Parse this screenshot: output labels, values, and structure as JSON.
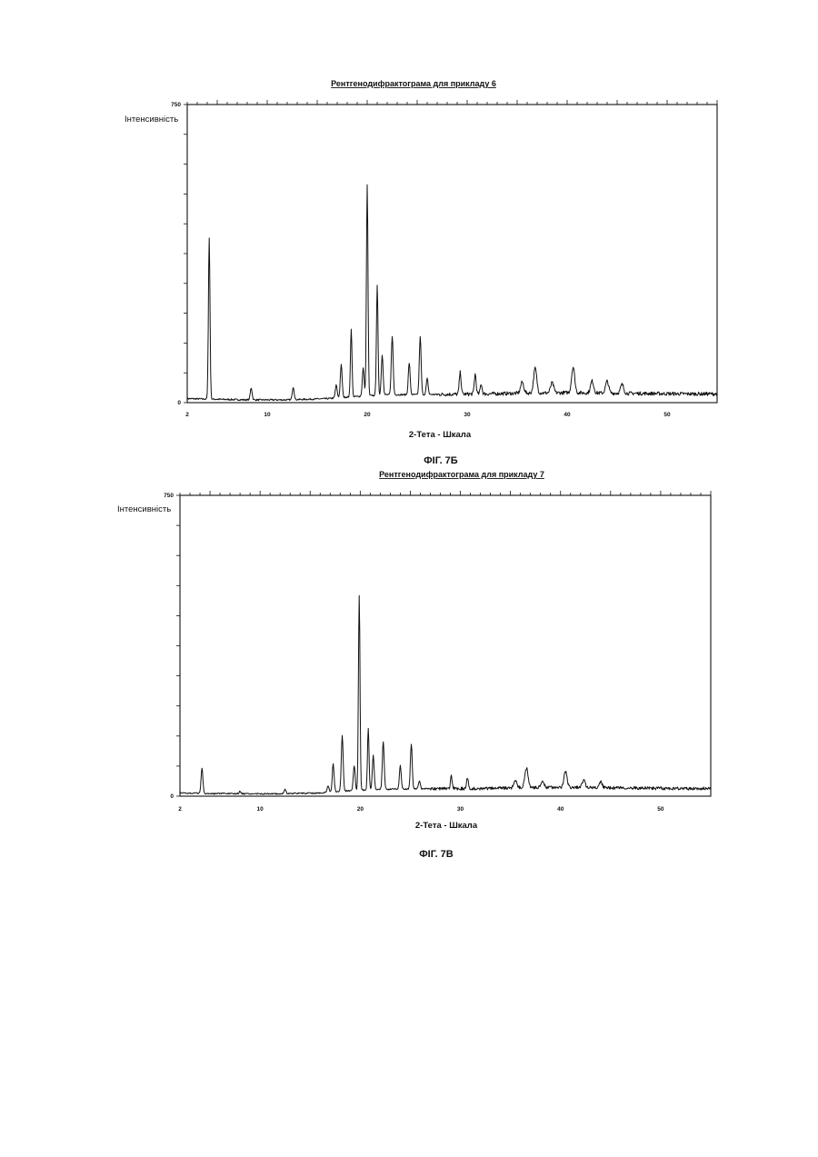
{
  "chart_data": [
    {
      "type": "line",
      "title": "Рентгенодифрактограма для прикладу 6",
      "ylabel": "Інтенсивність",
      "xlabel": "2-Тета - Шкала",
      "caption": "ФІГ. 7Б",
      "xlim": [
        2,
        55
      ],
      "ylim": [
        0,
        750
      ],
      "xticks": [
        "2",
        "10",
        "20",
        "30",
        "40",
        "50"
      ],
      "yticks": [
        "750",
        "0"
      ],
      "baseline": [
        [
          2,
          10
        ],
        [
          4,
          9
        ],
        [
          8,
          7
        ],
        [
          12,
          7
        ],
        [
          16,
          10
        ],
        [
          18,
          14
        ],
        [
          20,
          17
        ],
        [
          22,
          20
        ],
        [
          25,
          20
        ],
        [
          28,
          21
        ],
        [
          32,
          22
        ],
        [
          36,
          24
        ],
        [
          40,
          25
        ],
        [
          44,
          24
        ],
        [
          48,
          23
        ],
        [
          52,
          22
        ],
        [
          55,
          22
        ]
      ],
      "peaks": [
        {
          "x": 4.2,
          "y": 405
        },
        {
          "x": 8.4,
          "y": 30
        },
        {
          "x": 12.6,
          "y": 32
        },
        {
          "x": 16.9,
          "y": 32
        },
        {
          "x": 17.4,
          "y": 82
        },
        {
          "x": 18.4,
          "y": 170
        },
        {
          "x": 19.6,
          "y": 70
        },
        {
          "x": 20.0,
          "y": 530
        },
        {
          "x": 21.0,
          "y": 275
        },
        {
          "x": 21.5,
          "y": 100
        },
        {
          "x": 22.5,
          "y": 148
        },
        {
          "x": 24.2,
          "y": 80
        },
        {
          "x": 25.3,
          "y": 145
        },
        {
          "x": 26.0,
          "y": 40
        },
        {
          "x": 29.3,
          "y": 55
        },
        {
          "x": 30.8,
          "y": 50
        },
        {
          "x": 31.4,
          "y": 25
        },
        {
          "x": 35.5,
          "y": 28
        },
        {
          "x": 36.8,
          "y": 62
        },
        {
          "x": 38.5,
          "y": 25
        },
        {
          "x": 40.6,
          "y": 65
        },
        {
          "x": 42.5,
          "y": 30
        },
        {
          "x": 44.0,
          "y": 30
        },
        {
          "x": 45.5,
          "y": 22
        }
      ]
    },
    {
      "type": "line",
      "title": "Рентгенодифрактограма для прикладу 7",
      "ylabel": "Інтенсивність",
      "xlabel": "2-Тета - Шкала",
      "caption": "ФІГ. 7В",
      "xlim": [
        2,
        55
      ],
      "ylim": [
        0,
        750
      ],
      "xticks": [
        "2",
        "10",
        "20",
        "30",
        "40",
        "50"
      ],
      "yticks": [
        "750",
        "0"
      ],
      "baseline": [
        [
          2,
          8
        ],
        [
          4,
          7
        ],
        [
          8,
          6
        ],
        [
          12,
          6
        ],
        [
          16,
          8
        ],
        [
          18,
          12
        ],
        [
          20,
          15
        ],
        [
          22,
          17
        ],
        [
          25,
          18
        ],
        [
          28,
          19
        ],
        [
          32,
          19
        ],
        [
          36,
          21
        ],
        [
          40,
          22
        ],
        [
          44,
          21
        ],
        [
          48,
          20
        ],
        [
          52,
          19
        ],
        [
          55,
          19
        ]
      ],
      "peaks": [
        {
          "x": 4.2,
          "y": 62
        },
        {
          "x": 8.0,
          "y": 6
        },
        {
          "x": 12.5,
          "y": 10
        },
        {
          "x": 16.8,
          "y": 16
        },
        {
          "x": 17.3,
          "y": 70
        },
        {
          "x": 18.2,
          "y": 140
        },
        {
          "x": 19.4,
          "y": 62
        },
        {
          "x": 19.9,
          "y": 485
        },
        {
          "x": 20.8,
          "y": 152
        },
        {
          "x": 21.3,
          "y": 85
        },
        {
          "x": 22.3,
          "y": 120
        },
        {
          "x": 24.0,
          "y": 58
        },
        {
          "x": 25.1,
          "y": 112
        },
        {
          "x": 25.9,
          "y": 20
        },
        {
          "x": 29.1,
          "y": 30
        },
        {
          "x": 30.7,
          "y": 28
        },
        {
          "x": 35.5,
          "y": 20
        },
        {
          "x": 36.6,
          "y": 50
        },
        {
          "x": 38.2,
          "y": 15
        },
        {
          "x": 40.5,
          "y": 40
        },
        {
          "x": 42.3,
          "y": 18
        },
        {
          "x": 44.0,
          "y": 15
        }
      ]
    }
  ]
}
